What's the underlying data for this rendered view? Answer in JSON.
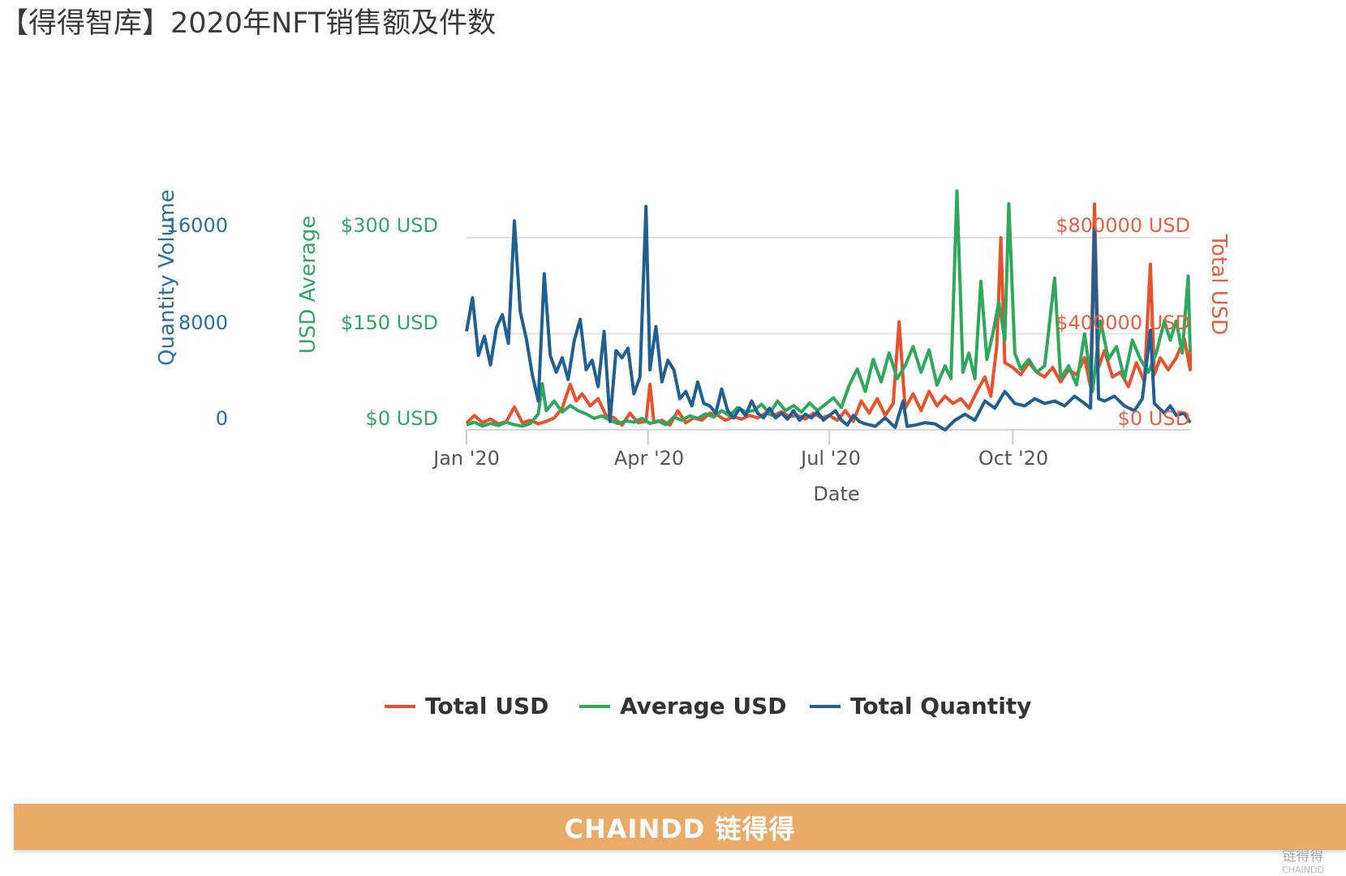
{
  "title": "【得得智库】2020年NFT销售额及件数",
  "banner": {
    "brand": "CHAINDD 链得得"
  },
  "corner_logo": {
    "name": "链得得",
    "sub": "CHAINDD"
  },
  "colors": {
    "total_usd": "#e8512a",
    "average_usd": "#2ea85a",
    "total_quantity": "#1f5f91",
    "banner": "#ebab68"
  },
  "chart_data": {
    "type": "line",
    "title": "2020年NFT销售额及件数",
    "xlabel": "Date",
    "x_unit": "day of year 2020",
    "xlim": [
      0,
      366
    ],
    "x_ticks": [
      {
        "day": 0,
        "label": "Jan '20"
      },
      {
        "day": 91,
        "label": "Apr '20"
      },
      {
        "day": 182,
        "label": "Jul '20"
      },
      {
        "day": 274,
        "label": "Oct '20"
      }
    ],
    "axes": {
      "quantity": {
        "label": "Quantity Volume",
        "ylim": [
          0,
          16000
        ],
        "ticks": [
          "0",
          "8000",
          "16000"
        ]
      },
      "average": {
        "label": "USD Average",
        "ylim": [
          0,
          300
        ],
        "ticks": [
          "$0 USD",
          "$150 USD",
          "$300 USD"
        ]
      },
      "total": {
        "label": "Total USD",
        "ylim": [
          0,
          800000
        ],
        "ticks": [
          "$0 USD",
          "$400000 USD",
          "$800000 USD"
        ]
      }
    },
    "grid": true,
    "legend_position": "bottom",
    "series": [
      {
        "name": "Total USD",
        "axis": "total",
        "color": "#e8512a",
        "points": [
          [
            0,
            28000
          ],
          [
            4,
            60000
          ],
          [
            8,
            30000
          ],
          [
            12,
            45000
          ],
          [
            16,
            25000
          ],
          [
            20,
            35000
          ],
          [
            24,
            95000
          ],
          [
            28,
            30000
          ],
          [
            32,
            40000
          ],
          [
            36,
            25000
          ],
          [
            40,
            35000
          ],
          [
            44,
            50000
          ],
          [
            48,
            90000
          ],
          [
            52,
            190000
          ],
          [
            55,
            120000
          ],
          [
            58,
            150000
          ],
          [
            62,
            100000
          ],
          [
            66,
            130000
          ],
          [
            70,
            60000
          ],
          [
            74,
            50000
          ],
          [
            78,
            20000
          ],
          [
            82,
            70000
          ],
          [
            86,
            30000
          ],
          [
            90,
            35000
          ],
          [
            92,
            190000
          ],
          [
            94,
            30000
          ],
          [
            98,
            40000
          ],
          [
            102,
            20000
          ],
          [
            106,
            80000
          ],
          [
            110,
            30000
          ],
          [
            114,
            50000
          ],
          [
            118,
            40000
          ],
          [
            122,
            70000
          ],
          [
            126,
            60000
          ],
          [
            130,
            40000
          ],
          [
            134,
            55000
          ],
          [
            138,
            45000
          ],
          [
            142,
            60000
          ],
          [
            146,
            50000
          ],
          [
            150,
            70000
          ],
          [
            154,
            60000
          ],
          [
            158,
            75000
          ],
          [
            162,
            55000
          ],
          [
            166,
            60000
          ],
          [
            170,
            45000
          ],
          [
            174,
            70000
          ],
          [
            178,
            50000
          ],
          [
            182,
            60000
          ],
          [
            186,
            40000
          ],
          [
            190,
            80000
          ],
          [
            194,
            35000
          ],
          [
            198,
            120000
          ],
          [
            202,
            70000
          ],
          [
            206,
            130000
          ],
          [
            210,
            60000
          ],
          [
            214,
            110000
          ],
          [
            217,
            450000
          ],
          [
            220,
            90000
          ],
          [
            224,
            150000
          ],
          [
            228,
            80000
          ],
          [
            232,
            160000
          ],
          [
            236,
            100000
          ],
          [
            240,
            140000
          ],
          [
            244,
            110000
          ],
          [
            248,
            130000
          ],
          [
            252,
            90000
          ],
          [
            256,
            160000
          ],
          [
            260,
            220000
          ],
          [
            263,
            140000
          ],
          [
            266,
            350000
          ],
          [
            268,
            800000
          ],
          [
            270,
            280000
          ],
          [
            274,
            260000
          ],
          [
            278,
            230000
          ],
          [
            282,
            280000
          ],
          [
            286,
            240000
          ],
          [
            290,
            220000
          ],
          [
            294,
            260000
          ],
          [
            298,
            200000
          ],
          [
            302,
            250000
          ],
          [
            306,
            230000
          ],
          [
            310,
            300000
          ],
          [
            313,
            180000
          ],
          [
            315,
            940000
          ],
          [
            317,
            260000
          ],
          [
            320,
            330000
          ],
          [
            324,
            220000
          ],
          [
            328,
            240000
          ],
          [
            332,
            180000
          ],
          [
            336,
            280000
          ],
          [
            340,
            200000
          ],
          [
            343,
            690000
          ],
          [
            345,
            230000
          ],
          [
            348,
            300000
          ],
          [
            352,
            250000
          ],
          [
            356,
            300000
          ],
          [
            360,
            380000
          ],
          [
            363,
            250000
          ],
          [
            366,
            320000
          ]
        ]
      },
      {
        "name": "Average USD",
        "axis": "average",
        "color": "#2ea85a",
        "points": [
          [
            0,
            8
          ],
          [
            4,
            12
          ],
          [
            8,
            6
          ],
          [
            12,
            10
          ],
          [
            16,
            7
          ],
          [
            20,
            12
          ],
          [
            24,
            8
          ],
          [
            28,
            6
          ],
          [
            32,
            10
          ],
          [
            36,
            25
          ],
          [
            38,
            72
          ],
          [
            40,
            30
          ],
          [
            44,
            45
          ],
          [
            48,
            28
          ],
          [
            52,
            38
          ],
          [
            56,
            30
          ],
          [
            60,
            25
          ],
          [
            64,
            18
          ],
          [
            68,
            22
          ],
          [
            72,
            15
          ],
          [
            76,
            10
          ],
          [
            80,
            14
          ],
          [
            84,
            12
          ],
          [
            88,
            18
          ],
          [
            92,
            10
          ],
          [
            96,
            14
          ],
          [
            100,
            8
          ],
          [
            104,
            20
          ],
          [
            108,
            15
          ],
          [
            112,
            22
          ],
          [
            116,
            18
          ],
          [
            120,
            25
          ],
          [
            124,
            20
          ],
          [
            128,
            30
          ],
          [
            132,
            22
          ],
          [
            136,
            35
          ],
          [
            140,
            28
          ],
          [
            144,
            30
          ],
          [
            148,
            40
          ],
          [
            152,
            25
          ],
          [
            156,
            45
          ],
          [
            160,
            30
          ],
          [
            164,
            38
          ],
          [
            168,
            28
          ],
          [
            172,
            42
          ],
          [
            176,
            30
          ],
          [
            180,
            40
          ],
          [
            184,
            50
          ],
          [
            188,
            35
          ],
          [
            192,
            70
          ],
          [
            196,
            95
          ],
          [
            200,
            60
          ],
          [
            204,
            110
          ],
          [
            208,
            75
          ],
          [
            212,
            120
          ],
          [
            216,
            80
          ],
          [
            220,
            100
          ],
          [
            224,
            130
          ],
          [
            228,
            90
          ],
          [
            232,
            125
          ],
          [
            236,
            70
          ],
          [
            240,
            100
          ],
          [
            243,
            80
          ],
          [
            246,
            373
          ],
          [
            249,
            90
          ],
          [
            252,
            120
          ],
          [
            255,
            80
          ],
          [
            258,
            232
          ],
          [
            261,
            110
          ],
          [
            264,
            150
          ],
          [
            267,
            200
          ],
          [
            270,
            140
          ],
          [
            272,
            353
          ],
          [
            275,
            120
          ],
          [
            278,
            95
          ],
          [
            282,
            110
          ],
          [
            286,
            90
          ],
          [
            290,
            100
          ],
          [
            295,
            237
          ],
          [
            298,
            80
          ],
          [
            302,
            100
          ],
          [
            306,
            70
          ],
          [
            310,
            150
          ],
          [
            314,
            60
          ],
          [
            318,
            170
          ],
          [
            322,
            110
          ],
          [
            326,
            130
          ],
          [
            330,
            80
          ],
          [
            334,
            140
          ],
          [
            338,
            110
          ],
          [
            342,
            90
          ],
          [
            346,
            120
          ],
          [
            350,
            170
          ],
          [
            353,
            140
          ],
          [
            356,
            170
          ],
          [
            359,
            120
          ],
          [
            362,
            240
          ],
          [
            366,
            120
          ]
        ]
      },
      {
        "name": "Total Quantity",
        "axis": "quantity",
        "color": "#1f5f91",
        "points": [
          [
            0,
            8200
          ],
          [
            3,
            11000
          ],
          [
            6,
            6200
          ],
          [
            9,
            7800
          ],
          [
            12,
            5400
          ],
          [
            15,
            8500
          ],
          [
            18,
            9600
          ],
          [
            21,
            7200
          ],
          [
            24,
            17400
          ],
          [
            27,
            9800
          ],
          [
            30,
            7600
          ],
          [
            33,
            4600
          ],
          [
            36,
            2400
          ],
          [
            39,
            13000
          ],
          [
            42,
            6200
          ],
          [
            45,
            4800
          ],
          [
            48,
            6000
          ],
          [
            51,
            4200
          ],
          [
            54,
            7400
          ],
          [
            57,
            9200
          ],
          [
            60,
            5000
          ],
          [
            63,
            5800
          ],
          [
            66,
            3600
          ],
          [
            69,
            8200
          ],
          [
            72,
            700
          ],
          [
            75,
            6600
          ],
          [
            78,
            6000
          ],
          [
            81,
            6800
          ],
          [
            84,
            3000
          ],
          [
            87,
            4400
          ],
          [
            90,
            18600
          ],
          [
            92,
            5000
          ],
          [
            95,
            8600
          ],
          [
            98,
            4000
          ],
          [
            101,
            5800
          ],
          [
            104,
            5000
          ],
          [
            107,
            2600
          ],
          [
            110,
            3200
          ],
          [
            113,
            2000
          ],
          [
            116,
            4000
          ],
          [
            119,
            2200
          ],
          [
            122,
            2000
          ],
          [
            125,
            1400
          ],
          [
            128,
            3400
          ],
          [
            131,
            1600
          ],
          [
            134,
            1000
          ],
          [
            137,
            1800
          ],
          [
            140,
            1200
          ],
          [
            143,
            2400
          ],
          [
            146,
            1400
          ],
          [
            149,
            1000
          ],
          [
            152,
            1800
          ],
          [
            155,
            1000
          ],
          [
            158,
            1400
          ],
          [
            161,
            900
          ],
          [
            164,
            1600
          ],
          [
            167,
            800
          ],
          [
            170,
            1300
          ],
          [
            173,
            1000
          ],
          [
            176,
            1500
          ],
          [
            179,
            800
          ],
          [
            182,
            1200
          ],
          [
            185,
            1600
          ],
          [
            188,
            800
          ],
          [
            191,
            400
          ],
          [
            194,
            1200
          ],
          [
            197,
            700
          ],
          [
            200,
            500
          ],
          [
            205,
            300
          ],
          [
            210,
            1000
          ],
          [
            215,
            200
          ],
          [
            219,
            2400
          ],
          [
            221,
            300
          ],
          [
            225,
            400
          ],
          [
            230,
            600
          ],
          [
            235,
            500
          ],
          [
            240,
            0
          ],
          [
            245,
            800
          ],
          [
            250,
            1300
          ],
          [
            255,
            800
          ],
          [
            260,
            2400
          ],
          [
            265,
            1800
          ],
          [
            270,
            3200
          ],
          [
            275,
            2200
          ],
          [
            280,
            2000
          ],
          [
            285,
            2600
          ],
          [
            290,
            2200
          ],
          [
            295,
            2400
          ],
          [
            300,
            2000
          ],
          [
            305,
            2800
          ],
          [
            310,
            2200
          ],
          [
            313,
            1800
          ],
          [
            315,
            16800
          ],
          [
            317,
            2600
          ],
          [
            320,
            2400
          ],
          [
            325,
            2800
          ],
          [
            330,
            2000
          ],
          [
            335,
            1600
          ],
          [
            339,
            2600
          ],
          [
            343,
            8300
          ],
          [
            345,
            2200
          ],
          [
            350,
            1400
          ],
          [
            353,
            2000
          ],
          [
            356,
            1200
          ],
          [
            360,
            1400
          ],
          [
            366,
            600
          ]
        ]
      }
    ]
  }
}
